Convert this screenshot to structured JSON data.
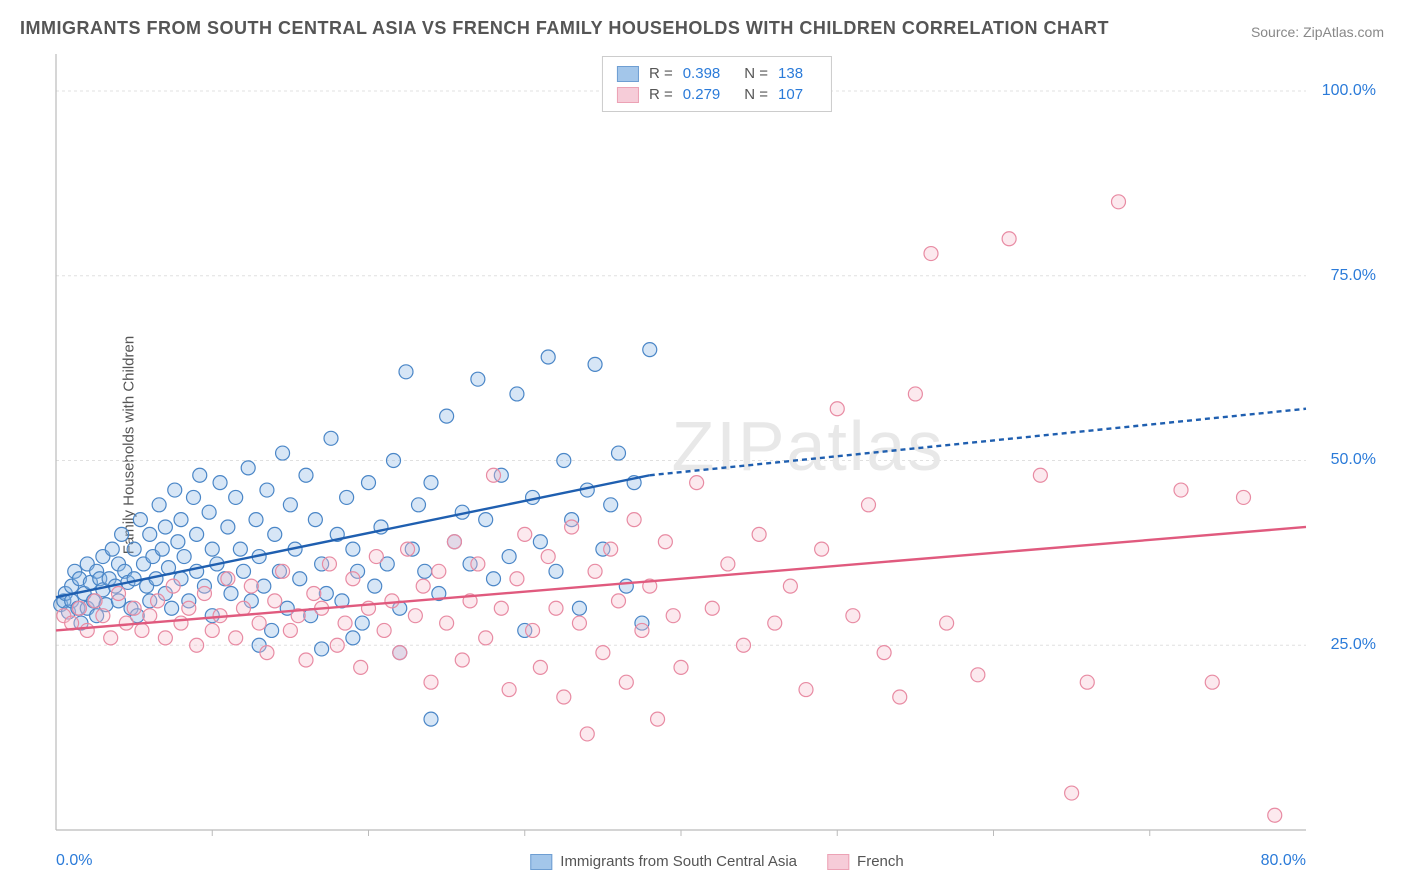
{
  "title": "IMMIGRANTS FROM SOUTH CENTRAL ASIA VS FRENCH FAMILY HOUSEHOLDS WITH CHILDREN CORRELATION CHART",
  "source": "Source: ZipAtlas.com",
  "watermark": "ZIPatlas",
  "chart": {
    "type": "scatter",
    "background_color": "#ffffff",
    "grid_color": "#e0e0e0",
    "axis_border_color": "#bbbbbb",
    "tick_label_color": "#2b7bd9",
    "y_axis_label": "Family Households with Children",
    "xlim": [
      0,
      80
    ],
    "ylim": [
      0,
      105
    ],
    "x_ticks": [
      0,
      80
    ],
    "x_tick_labels": [
      "0.0%",
      "80.0%"
    ],
    "y_ticks": [
      25,
      50,
      75,
      100
    ],
    "y_tick_labels": [
      "25.0%",
      "50.0%",
      "75.0%",
      "100.0%"
    ],
    "x_minor_ticks": [
      10,
      20,
      30,
      40,
      50,
      60,
      70
    ],
    "marker_radius": 7,
    "marker_stroke_width": 1.2,
    "marker_fill_opacity": 0.35,
    "series": [
      {
        "id": "sca",
        "label": "Immigrants from South Central Asia",
        "R": "0.398",
        "N": "138",
        "color_stroke": "#4a86c7",
        "color_fill": "#8db8e6",
        "trend": {
          "x1": 0,
          "y1": 31.5,
          "x2": 38,
          "y2": 48,
          "x2_dash": 80,
          "y2_dash": 57,
          "color": "#1f5fb0",
          "width": 2.4,
          "dash": "5,4"
        },
        "points": [
          [
            0.3,
            30.5
          ],
          [
            0.5,
            31
          ],
          [
            0.6,
            32
          ],
          [
            0.8,
            29.5
          ],
          [
            1,
            33
          ],
          [
            1,
            31
          ],
          [
            1.2,
            35
          ],
          [
            1.4,
            30
          ],
          [
            1.5,
            34
          ],
          [
            1.6,
            28
          ],
          [
            1.8,
            32
          ],
          [
            2,
            36
          ],
          [
            2,
            30
          ],
          [
            2.2,
            33.5
          ],
          [
            2.4,
            31
          ],
          [
            2.6,
            35
          ],
          [
            2.6,
            29
          ],
          [
            2.8,
            34
          ],
          [
            3,
            32.5
          ],
          [
            3,
            37
          ],
          [
            3.2,
            30.5
          ],
          [
            3.4,
            34
          ],
          [
            3.6,
            38
          ],
          [
            3.8,
            33
          ],
          [
            4,
            31
          ],
          [
            4,
            36
          ],
          [
            4.2,
            40
          ],
          [
            4.4,
            35
          ],
          [
            4.6,
            33.5
          ],
          [
            4.8,
            30
          ],
          [
            5,
            38
          ],
          [
            5,
            34
          ],
          [
            5.2,
            29
          ],
          [
            5.4,
            42
          ],
          [
            5.6,
            36
          ],
          [
            5.8,
            33
          ],
          [
            6,
            40
          ],
          [
            6,
            31
          ],
          [
            6.2,
            37
          ],
          [
            6.4,
            34
          ],
          [
            6.6,
            44
          ],
          [
            6.8,
            38
          ],
          [
            7,
            32
          ],
          [
            7,
            41
          ],
          [
            7.2,
            35.5
          ],
          [
            7.4,
            30
          ],
          [
            7.6,
            46
          ],
          [
            7.8,
            39
          ],
          [
            8,
            34
          ],
          [
            8,
            42
          ],
          [
            8.2,
            37
          ],
          [
            8.5,
            31
          ],
          [
            8.8,
            45
          ],
          [
            9,
            40
          ],
          [
            9,
            35
          ],
          [
            9.2,
            48
          ],
          [
            9.5,
            33
          ],
          [
            9.8,
            43
          ],
          [
            10,
            38
          ],
          [
            10,
            29
          ],
          [
            10.3,
            36
          ],
          [
            10.5,
            47
          ],
          [
            10.8,
            34
          ],
          [
            11,
            41
          ],
          [
            11.2,
            32
          ],
          [
            11.5,
            45
          ],
          [
            11.8,
            38
          ],
          [
            12,
            35
          ],
          [
            12.3,
            49
          ],
          [
            12.5,
            31
          ],
          [
            12.8,
            42
          ],
          [
            13,
            37
          ],
          [
            13.3,
            33
          ],
          [
            13.5,
            46
          ],
          [
            13.8,
            27
          ],
          [
            14,
            40
          ],
          [
            14.3,
            35
          ],
          [
            14.5,
            51
          ],
          [
            14.8,
            30
          ],
          [
            15,
            44
          ],
          [
            15.3,
            38
          ],
          [
            15.6,
            34
          ],
          [
            16,
            48
          ],
          [
            16.3,
            29
          ],
          [
            16.6,
            42
          ],
          [
            17,
            36
          ],
          [
            17.3,
            32
          ],
          [
            17.6,
            53
          ],
          [
            18,
            40
          ],
          [
            18.3,
            31
          ],
          [
            18.6,
            45
          ],
          [
            19,
            38
          ],
          [
            19.3,
            35
          ],
          [
            19.6,
            28
          ],
          [
            20,
            47
          ],
          [
            20.4,
            33
          ],
          [
            20.8,
            41
          ],
          [
            21.2,
            36
          ],
          [
            21.6,
            50
          ],
          [
            22,
            30
          ],
          [
            22.4,
            62
          ],
          [
            22.8,
            38
          ],
          [
            23.2,
            44
          ],
          [
            23.6,
            35
          ],
          [
            24,
            47
          ],
          [
            24.5,
            32
          ],
          [
            25,
            56
          ],
          [
            25.5,
            39
          ],
          [
            26,
            43
          ],
          [
            26.5,
            36
          ],
          [
            27,
            61
          ],
          [
            27.5,
            42
          ],
          [
            28,
            34
          ],
          [
            28.5,
            48
          ],
          [
            29,
            37
          ],
          [
            29.5,
            59
          ],
          [
            30,
            27
          ],
          [
            30.5,
            45
          ],
          [
            31,
            39
          ],
          [
            31.5,
            64
          ],
          [
            32,
            35
          ],
          [
            32.5,
            50
          ],
          [
            33,
            42
          ],
          [
            33.5,
            30
          ],
          [
            34,
            46
          ],
          [
            34.5,
            63
          ],
          [
            35,
            38
          ],
          [
            35.5,
            44
          ],
          [
            36,
            51
          ],
          [
            36.5,
            33
          ],
          [
            37,
            47
          ],
          [
            37.5,
            28
          ],
          [
            38,
            65
          ],
          [
            24,
            15
          ],
          [
            22,
            24
          ],
          [
            19,
            26
          ],
          [
            17,
            24.5
          ],
          [
            13,
            25
          ]
        ]
      },
      {
        "id": "french",
        "label": "French",
        "R": "0.279",
        "N": "107",
        "color_stroke": "#e88ba3",
        "color_fill": "#f5c0cf",
        "trend": {
          "x1": 0,
          "y1": 27,
          "x2": 80,
          "y2": 41,
          "x2_dash": 80,
          "y2_dash": 41,
          "color": "#e05a7e",
          "width": 2.4,
          "dash": ""
        },
        "points": [
          [
            0.5,
            29
          ],
          [
            1,
            28
          ],
          [
            1.5,
            30
          ],
          [
            2,
            27
          ],
          [
            2.5,
            31
          ],
          [
            3,
            29
          ],
          [
            3.5,
            26
          ],
          [
            4,
            32
          ],
          [
            4.5,
            28
          ],
          [
            5,
            30
          ],
          [
            5.5,
            27
          ],
          [
            6,
            29
          ],
          [
            6.5,
            31
          ],
          [
            7,
            26
          ],
          [
            7.5,
            33
          ],
          [
            8,
            28
          ],
          [
            8.5,
            30
          ],
          [
            9,
            25
          ],
          [
            9.5,
            32
          ],
          [
            10,
            27
          ],
          [
            10.5,
            29
          ],
          [
            11,
            34
          ],
          [
            11.5,
            26
          ],
          [
            12,
            30
          ],
          [
            12.5,
            33
          ],
          [
            13,
            28
          ],
          [
            13.5,
            24
          ],
          [
            14,
            31
          ],
          [
            14.5,
            35
          ],
          [
            15,
            27
          ],
          [
            15.5,
            29
          ],
          [
            16,
            23
          ],
          [
            16.5,
            32
          ],
          [
            17,
            30
          ],
          [
            17.5,
            36
          ],
          [
            18,
            25
          ],
          [
            18.5,
            28
          ],
          [
            19,
            34
          ],
          [
            19.5,
            22
          ],
          [
            20,
            30
          ],
          [
            20.5,
            37
          ],
          [
            21,
            27
          ],
          [
            21.5,
            31
          ],
          [
            22,
            24
          ],
          [
            22.5,
            38
          ],
          [
            23,
            29
          ],
          [
            23.5,
            33
          ],
          [
            24,
            20
          ],
          [
            24.5,
            35
          ],
          [
            25,
            28
          ],
          [
            25.5,
            39
          ],
          [
            26,
            23
          ],
          [
            26.5,
            31
          ],
          [
            27,
            36
          ],
          [
            27.5,
            26
          ],
          [
            28,
            48
          ],
          [
            28.5,
            30
          ],
          [
            29,
            19
          ],
          [
            29.5,
            34
          ],
          [
            30,
            40
          ],
          [
            30.5,
            27
          ],
          [
            31,
            22
          ],
          [
            31.5,
            37
          ],
          [
            32,
            30
          ],
          [
            32.5,
            18
          ],
          [
            33,
            41
          ],
          [
            33.5,
            28
          ],
          [
            34,
            13
          ],
          [
            34.5,
            35
          ],
          [
            35,
            24
          ],
          [
            35.5,
            38
          ],
          [
            36,
            31
          ],
          [
            36.5,
            20
          ],
          [
            37,
            42
          ],
          [
            37.5,
            27
          ],
          [
            38,
            33
          ],
          [
            38.5,
            15
          ],
          [
            39,
            39
          ],
          [
            39.5,
            29
          ],
          [
            40,
            22
          ],
          [
            41,
            47
          ],
          [
            42,
            30
          ],
          [
            43,
            36
          ],
          [
            44,
            25
          ],
          [
            45,
            40
          ],
          [
            46,
            28
          ],
          [
            47,
            33
          ],
          [
            48,
            19
          ],
          [
            49,
            38
          ],
          [
            50,
            57
          ],
          [
            51,
            29
          ],
          [
            52,
            44
          ],
          [
            53,
            24
          ],
          [
            54,
            18
          ],
          [
            55,
            59
          ],
          [
            56,
            78
          ],
          [
            57,
            28
          ],
          [
            59,
            21
          ],
          [
            61,
            80
          ],
          [
            63,
            48
          ],
          [
            65,
            5
          ],
          [
            66,
            20
          ],
          [
            68,
            85
          ],
          [
            72,
            46
          ],
          [
            74,
            20
          ],
          [
            76,
            45
          ],
          [
            78,
            2
          ]
        ]
      }
    ],
    "legend_top": {
      "R_label": "R =",
      "N_label": "N ="
    },
    "legend_bottom": [
      {
        "series": "sca",
        "label": "Immigrants from South Central Asia"
      },
      {
        "series": "french",
        "label": "French"
      }
    ]
  }
}
